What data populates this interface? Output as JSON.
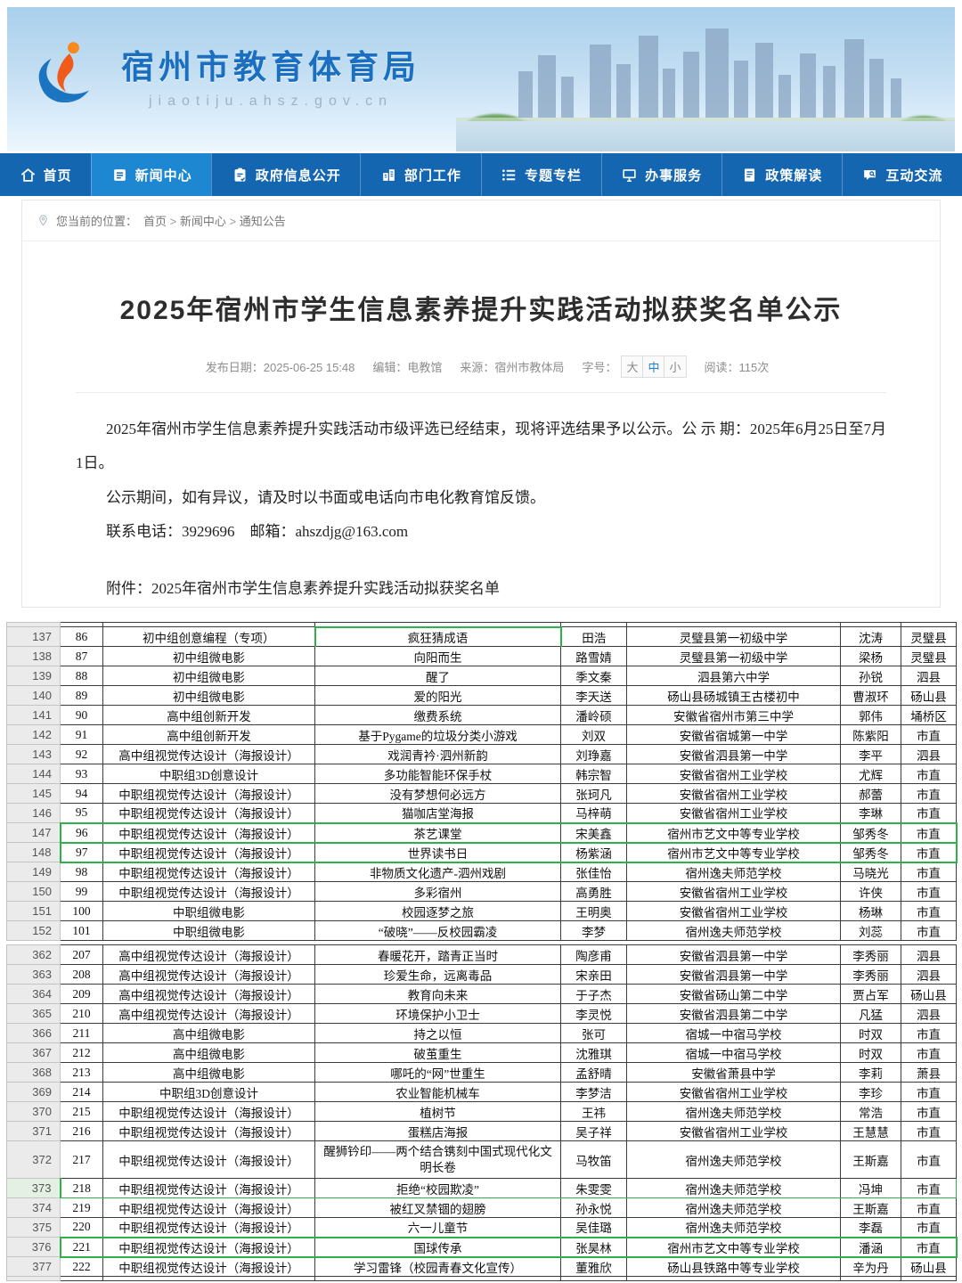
{
  "banner": {
    "site_name": "宿州市教育体育局",
    "site_url": "jiaotiju.ahsz.gov.cn"
  },
  "nav": {
    "items": [
      {
        "name": "home",
        "icon": "home-icon",
        "label": "首页",
        "active": false
      },
      {
        "name": "news-center",
        "icon": "news-icon",
        "label": "新闻中心",
        "active": true
      },
      {
        "name": "gov-info",
        "icon": "gov-info-icon",
        "label": "政府信息公开",
        "active": false
      },
      {
        "name": "departments",
        "icon": "department-icon",
        "label": "部门工作",
        "active": false
      },
      {
        "name": "topics",
        "icon": "topics-icon",
        "label": "专题专栏",
        "active": false
      },
      {
        "name": "services",
        "icon": "service-icon",
        "label": "办事服务",
        "active": false
      },
      {
        "name": "policy",
        "icon": "policy-icon",
        "label": "政策解读",
        "active": false
      },
      {
        "name": "interaction",
        "icon": "interact-icon",
        "label": "互动交流",
        "active": false
      }
    ]
  },
  "breadcrumb": {
    "prefix": "您当前的位置：",
    "separator": ">",
    "items": [
      "首页",
      "新闻中心",
      "通知公告"
    ]
  },
  "article": {
    "title": "2025年宿州市学生信息素养提升实践活动拟获奖名单公示",
    "meta": {
      "publish": "发布日期：2025-06-25 15:48",
      "editor": "编辑：电教馆",
      "source": "来源：宿州市教体局",
      "font_size_label": "字号：",
      "font_sizes": [
        "大",
        "中",
        "小"
      ],
      "font_size_active": "中",
      "reads": "阅读：115次"
    },
    "paragraphs": [
      "2025年宿州市学生信息素养提升实践活动市级评选已经结束，现将评选结果予以公示。公 示 期：2025年6月25日至7月1日。",
      "公示期间，如有异议，请及时以书面或电话向市电化教育馆反馈。",
      "联系电话：3929696　邮箱：ahszdjg@163.com"
    ],
    "attachment": "附件：2025年宿州市学生信息素养提升实践活动拟获奖名单"
  },
  "sheet": {
    "segments": [
      {
        "rows": [
          {
            "no": "137",
            "cells": [
              "86",
              "初中组创意编程（专项）",
              "疯狂猜成语",
              "田浩",
              "灵璧县第一初级中学",
              "沈涛",
              "灵璧县"
            ],
            "hl": "work-box"
          },
          {
            "no": "138",
            "cells": [
              "87",
              "初中组微电影",
              "向阳而生",
              "路雪婧",
              "灵璧县第一初级中学",
              "梁杨",
              "灵璧县"
            ],
            "hl": ""
          },
          {
            "no": "139",
            "cells": [
              "88",
              "初中组微电影",
              "醒了",
              "季文秦",
              "泗县第六中学",
              "孙锐",
              "泗县"
            ],
            "hl": ""
          },
          {
            "no": "140",
            "cells": [
              "89",
              "初中组微电影",
              "爱的阳光",
              "李天送",
              "砀山县砀城镇王古楼初中",
              "曹淑环",
              "砀山县"
            ],
            "hl": ""
          },
          {
            "no": "141",
            "cells": [
              "90",
              "高中组创新开发",
              "缴费系统",
              "潘岭硕",
              "安徽省宿州市第三中学",
              "郭伟",
              "埇桥区"
            ],
            "hl": ""
          },
          {
            "no": "142",
            "cells": [
              "91",
              "高中组创新开发",
              "基于Pygame的垃圾分类小游戏",
              "刘双",
              "安徽省宿城第一中学",
              "陈紫阳",
              "市直"
            ],
            "hl": ""
          },
          {
            "no": "143",
            "cells": [
              "92",
              "高中组视觉传达设计（海报设计）",
              "戏润青衿·泗州新韵",
              "刘琤嘉",
              "安徽省泗县第一中学",
              "李平",
              "泗县"
            ],
            "hl": ""
          },
          {
            "no": "144",
            "cells": [
              "93",
              "中职组3D创意设计",
              "多功能智能环保手杖",
              "韩宗智",
              "安徽省宿州工业学校",
              "尤辉",
              "市直"
            ],
            "hl": ""
          },
          {
            "no": "145",
            "cells": [
              "94",
              "中职组视觉传达设计（海报设计）",
              "没有梦想何必远方",
              "张珂凡",
              "安徽省宿州工业学校",
              "郝蕾",
              "市直"
            ],
            "hl": ""
          },
          {
            "no": "146",
            "cells": [
              "95",
              "中职组视觉传达设计（海报设计）",
              "猫咖店堂海报",
              "马梓萌",
              "安徽省宿州工业学校",
              "李琳",
              "市直"
            ],
            "hl": ""
          },
          {
            "no": "147",
            "cells": [
              "96",
              "中职组视觉传达设计（海报设计）",
              "茶艺课堂",
              "宋美鑫",
              "宿州市艺文中等专业学校",
              "邹秀冬",
              "市直"
            ],
            "hl": "hl-row"
          },
          {
            "no": "148",
            "cells": [
              "97",
              "中职组视觉传达设计（海报设计）",
              "世界读书日",
              "杨紫涵",
              "宿州市艺文中等专业学校",
              "邹秀冬",
              "市直"
            ],
            "hl": "hl-row"
          },
          {
            "no": "149",
            "cells": [
              "98",
              "中职组视觉传达设计（海报设计）",
              "非物质文化遗产-泗州戏剧",
              "张佳怡",
              "宿州逸夫师范学校",
              "马晓光",
              "市直"
            ],
            "hl": ""
          },
          {
            "no": "150",
            "cells": [
              "99",
              "中职组视觉传达设计（海报设计）",
              "多彩宿州",
              "高勇胜",
              "安徽省宿州工业学校",
              "许侠",
              "市直"
            ],
            "hl": ""
          },
          {
            "no": "151",
            "cells": [
              "100",
              "中职组微电影",
              "校园逐梦之旅",
              "王明奥",
              "安徽省宿州工业学校",
              "杨琳",
              "市直"
            ],
            "hl": ""
          },
          {
            "no": "152",
            "cells": [
              "101",
              "中职组微电影",
              "“破晓”——反校园霸凌",
              "李梦",
              "宿州逸夫师范学校",
              "刘蕊",
              "市直"
            ],
            "hl": ""
          }
        ]
      },
      {
        "rows": [
          {
            "no": "362",
            "cells": [
              "207",
              "高中组视觉传达设计（海报设计）",
              "春暖花开，踏青正当时",
              "陶彦甫",
              "安徽省泗县第一中学",
              "李秀丽",
              "泗县"
            ],
            "hl": ""
          },
          {
            "no": "363",
            "cells": [
              "208",
              "高中组视觉传达设计（海报设计）",
              "珍爱生命，远离毒品",
              "宋亲田",
              "安徽省泗县第一中学",
              "李秀丽",
              "泗县"
            ],
            "hl": ""
          },
          {
            "no": "364",
            "cells": [
              "209",
              "高中组视觉传达设计（海报设计）",
              "教育向未来",
              "于子杰",
              "安徽省砀山第二中学",
              "贾占军",
              "砀山县"
            ],
            "hl": ""
          },
          {
            "no": "365",
            "cells": [
              "210",
              "高中组视觉传达设计（海报设计）",
              "环境保护小卫士",
              "李灵悦",
              "安徽省泗县第二中学",
              "凡猛",
              "泗县"
            ],
            "hl": ""
          },
          {
            "no": "366",
            "cells": [
              "211",
              "高中组微电影",
              "持之以恒",
              "张可",
              "宿城一中宿马学校",
              "时双",
              "市直"
            ],
            "hl": ""
          },
          {
            "no": "367",
            "cells": [
              "212",
              "高中组微电影",
              "破茧重生",
              "沈雅琪",
              "宿城一中宿马学校",
              "时双",
              "市直"
            ],
            "hl": ""
          },
          {
            "no": "368",
            "cells": [
              "213",
              "高中组微电影",
              "哪吒的“网”世重生",
              "孟舒晴",
              "安徽省萧县中学",
              "李莉",
              "萧县"
            ],
            "hl": ""
          },
          {
            "no": "369",
            "cells": [
              "214",
              "中职组3D创意设计",
              "农业智能机械车",
              "李梦洁",
              "安徽省宿州工业学校",
              "李珍",
              "市直"
            ],
            "hl": ""
          },
          {
            "no": "370",
            "cells": [
              "215",
              "中职组视觉传达设计（海报设计）",
              "植树节",
              "王祎",
              "宿州逸夫师范学校",
              "常浩",
              "市直"
            ],
            "hl": ""
          },
          {
            "no": "371",
            "cells": [
              "216",
              "中职组视觉传达设计（海报设计）",
              "蛋糕店海报",
              "吴子祥",
              "安徽省宿州工业学校",
              "王慧慧",
              "市直"
            ],
            "hl": ""
          },
          {
            "no": "372",
            "cells": [
              "217",
              "中职组视觉传达设计（海报设计）",
              "醒狮钤印——两个结合镌刻中国式现代化文明长卷",
              "马牧笛",
              "宿州逸夫师范学校",
              "王斯嘉",
              "市直"
            ],
            "hl": "tall"
          },
          {
            "no": "373",
            "cells": [
              "218",
              "中职组视觉传达设计（海报设计）",
              "拒绝“校园欺凌”",
              "朱雯雯",
              "宿州逸夫师范学校",
              "冯坤",
              "市直"
            ],
            "hl": "hl-thin hdr-sel"
          },
          {
            "no": "374",
            "cells": [
              "219",
              "中职组视觉传达设计（海报设计）",
              "被红叉禁锢的翅膀",
              "孙永悦",
              "宿州逸夫师范学校",
              "王斯嘉",
              "市直"
            ],
            "hl": ""
          },
          {
            "no": "375",
            "cells": [
              "220",
              "中职组视觉传达设计（海报设计）",
              "六一儿童节",
              "吴佳璐",
              "宿州逸夫师范学校",
              "李磊",
              "市直"
            ],
            "hl": ""
          },
          {
            "no": "376",
            "cells": [
              "221",
              "中职组视觉传达设计（海报设计）",
              "国球传承",
              "张昊林",
              "宿州市艺文中等专业学校",
              "潘涵",
              "市直"
            ],
            "hl": "hl-row"
          },
          {
            "no": "377",
            "cells": [
              "222",
              "中职组视觉传达设计（海报设计）",
              "学习雷锋（校园青春文化宣传）",
              "董雅欣",
              "砀山县铁路中等专业学校",
              "辛为丹",
              "砀山县"
            ],
            "hl": ""
          }
        ]
      }
    ]
  },
  "colors": {
    "nav_blue": "#1566b0",
    "nav_active_blue": "#1e87d2",
    "logo_blue": "#1a6fc0",
    "highlight_green": "#2eb04a",
    "font_size_active_blue": "#1d7fd6"
  }
}
